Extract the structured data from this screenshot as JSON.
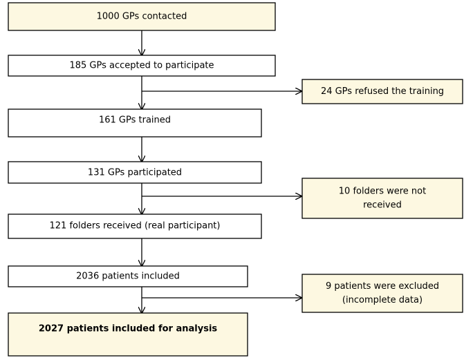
{
  "nodes": [
    {
      "lines": [
        "1000 GPs contacted"
      ]
    },
    {
      "lines": [
        "185 GPs accepted to participate"
      ]
    },
    {
      "lines": [
        "24 GPs refused the training"
      ]
    },
    {
      "lines": [
        "161 GPs trained"
      ]
    },
    {
      "lines": [
        "131 GPs participated"
      ]
    },
    {
      "lines": [
        "10 folders were not",
        "received"
      ]
    },
    {
      "lines": [
        "121 folders received (real participant)"
      ]
    },
    {
      "lines": [
        "2036 patients included"
      ]
    },
    {
      "lines": [
        "9 patients were excluded",
        "(incomplete data)"
      ]
    },
    {
      "lines": [
        "2027 patients included for analysis"
      ]
    }
  ]
}
